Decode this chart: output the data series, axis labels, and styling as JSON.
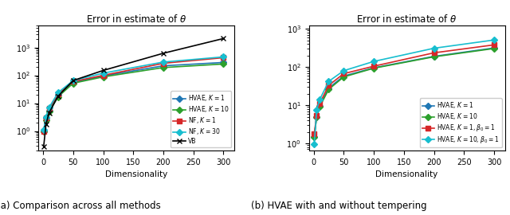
{
  "title": "Error in estimate of $\\theta$",
  "xlabel": "Dimensionality",
  "dims1": [
    1,
    5,
    10,
    25,
    50,
    100,
    200,
    300
  ],
  "dims2": [
    1,
    5,
    10,
    25,
    50,
    100,
    200,
    300
  ],
  "plot1": {
    "hvae_k1": [
      1.0,
      3.0,
      5.5,
      20,
      55,
      95,
      220,
      290
    ],
    "hvae_k10": [
      1.0,
      2.5,
      5.0,
      17,
      52,
      88,
      190,
      255
    ],
    "nf_k1": [
      1.0,
      3.0,
      6.5,
      22,
      60,
      100,
      270,
      430
    ],
    "nf_k30": [
      1.1,
      3.2,
      7.0,
      24,
      65,
      120,
      300,
      460
    ],
    "vb": [
      0.28,
      1.8,
      4.5,
      18,
      65,
      150,
      620,
      2100
    ]
  },
  "plot2": {
    "hvae_k1": [
      1.5,
      5.0,
      9.5,
      28,
      58,
      95,
      190,
      315
    ],
    "hvae_k10": [
      1.5,
      4.8,
      9.0,
      26,
      55,
      93,
      185,
      305
    ],
    "hvae_k1_b1": [
      1.8,
      5.5,
      11,
      33,
      67,
      105,
      235,
      380
    ],
    "hvae_k10_b1": [
      0.95,
      7.5,
      14,
      42,
      80,
      140,
      310,
      510
    ]
  },
  "colors": {
    "blue": "#1f77b4",
    "green": "#2ca02c",
    "red": "#d62728",
    "cyan": "#17becf",
    "black": "#000000"
  },
  "caption1": "(a) Comparison across all methods",
  "caption2": "(b) HVAE with and without tempering"
}
